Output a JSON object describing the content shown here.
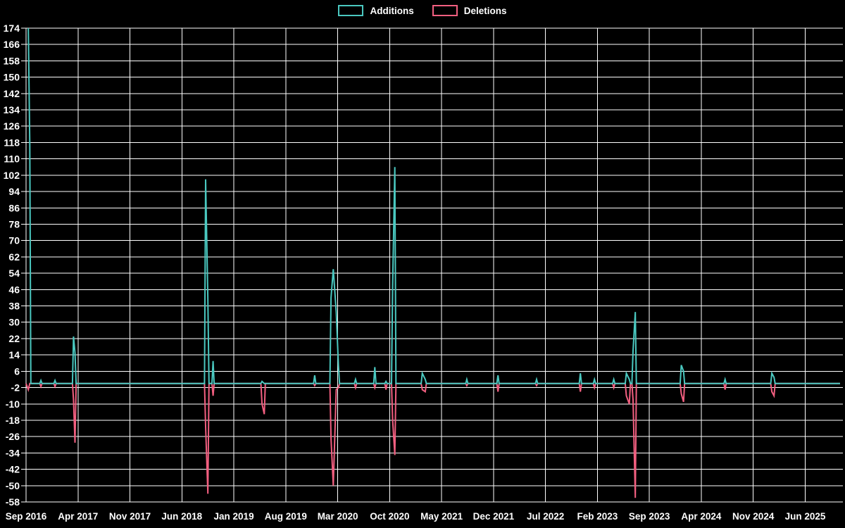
{
  "legend": {
    "items": [
      {
        "label": "Additions",
        "color": "#4ac8c0"
      },
      {
        "label": "Deletions",
        "color": "#f25f80"
      }
    ]
  },
  "chart_data": {
    "type": "line",
    "title": "",
    "background_color": "#000000",
    "grid_color": "#ffffff",
    "label_color": "#ffffff",
    "legend_position": "top-center",
    "grid": true,
    "x_labels": [
      "Sep 2016",
      "Apr 2017",
      "Nov 2017",
      "Jun 2018",
      "Jan 2019",
      "Aug 2019",
      "Mar 2020",
      "Oct 2020",
      "May 2021",
      "Dec 2021",
      "Jul 2022",
      "Feb 2023",
      "Sep 2023",
      "Apr 2024",
      "Nov 2024",
      "Jun 2025"
    ],
    "months_per_x_gridline": 7,
    "x_total_months": 109.7,
    "y_axis": {
      "min": -58,
      "max": 174,
      "step": 8,
      "tick_labels": [
        "174",
        "166",
        "158",
        "150",
        "142",
        "134",
        "126",
        "118",
        "110",
        "102",
        "94",
        "86",
        "78",
        "70",
        "62",
        "54",
        "46",
        "38",
        "30",
        "22",
        "14",
        "6",
        "-2",
        "-10",
        "-18",
        "-26",
        "-34",
        "-42",
        "-50",
        "-58"
      ]
    },
    "events_note": "x = months after Sep 2016; line sits at 0 between events",
    "x_months": [
      0.3,
      0.5,
      2.0,
      3.9,
      6.4,
      6.6,
      24.2,
      24.5,
      25.2,
      31.8,
      32.1,
      38.9,
      41.1,
      41.4,
      41.8,
      42.1,
      44.4,
      47.0,
      48.5,
      49.4,
      49.7,
      53.4,
      53.8,
      59.4,
      63.6,
      68.8,
      74.7,
      76.6,
      79.2,
      80.9,
      81.3,
      81.8,
      82.1,
      88.3,
      88.6,
      94.2,
      100.5,
      100.8
    ],
    "series": [
      {
        "name": "Additions",
        "color": "#4ac8c0",
        "values": [
          174,
          117,
          1.5,
          1.5,
          23,
          15,
          100,
          41,
          11,
          1,
          0,
          4,
          42,
          56,
          35,
          9,
          2,
          8,
          1,
          48,
          106,
          5,
          2,
          2,
          4,
          2,
          5,
          2,
          2,
          5,
          2,
          16,
          35,
          9,
          6,
          2,
          5,
          3
        ]
      },
      {
        "name": "Deletions",
        "color": "#f25f80",
        "values": [
          -3,
          0,
          -1.5,
          -1.5,
          -8,
          -29,
          -21,
          -54,
          -6,
          -10,
          -15,
          -1,
          -27,
          -50,
          -3,
          -2,
          -2,
          -2,
          -3,
          -18,
          -35,
          -3,
          -4,
          -1,
          -4,
          -1,
          -4,
          -2,
          -2,
          -6,
          -10,
          -8,
          -56,
          -5,
          -9,
          -3,
          -4,
          -6
        ]
      }
    ]
  }
}
